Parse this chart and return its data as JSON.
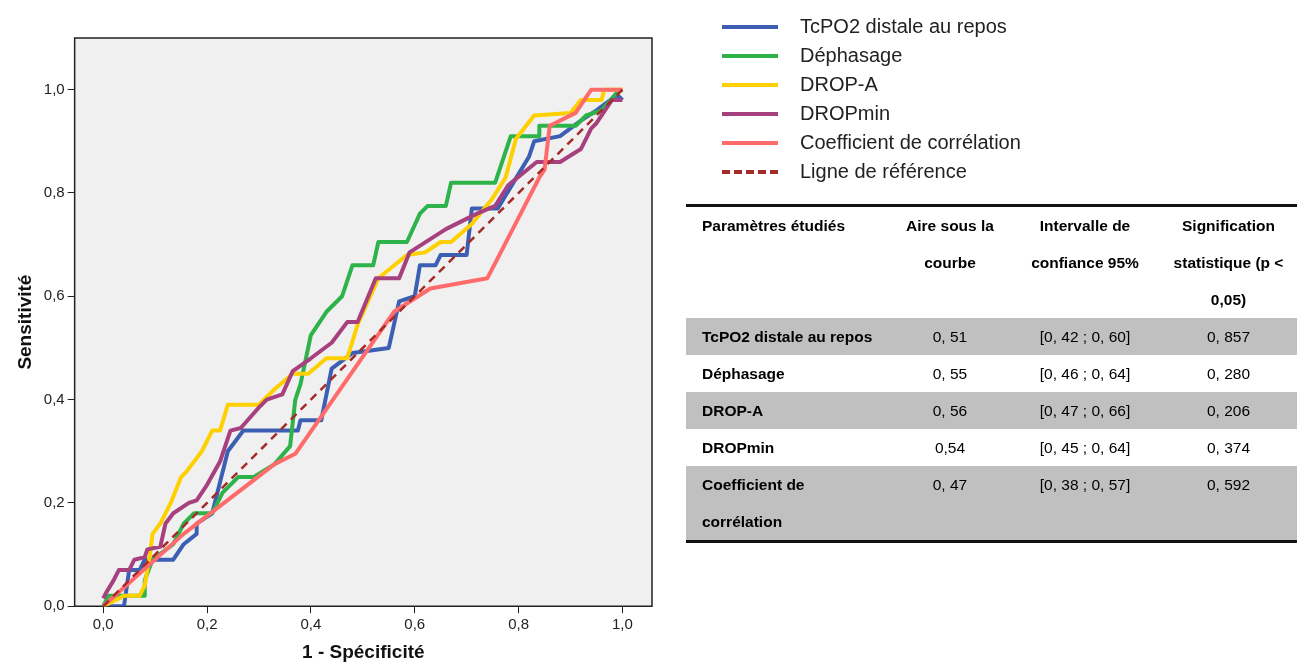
{
  "chart_data": [
    {
      "type": "line",
      "xlabel": "1 - Spécificité",
      "ylabel": "Sensitivité",
      "xlim": [
        -0.055,
        1.057
      ],
      "ylim": [
        0,
        1.1
      ],
      "xticks": [
        {
          "value": 0,
          "label": "0,0"
        },
        {
          "value": 0.2,
          "label": "0,2"
        },
        {
          "value": 0.4,
          "label": "0,4"
        },
        {
          "value": 0.6,
          "label": "0,6"
        },
        {
          "value": 0.8,
          "label": "0,8"
        },
        {
          "value": 1,
          "label": "1,0"
        }
      ],
      "yticks": [
        {
          "value": 0,
          "label": "0,0"
        },
        {
          "value": 0.2,
          "label": "0,2"
        },
        {
          "value": 0.4,
          "label": "0,4"
        },
        {
          "value": 0.6,
          "label": "0,6"
        },
        {
          "value": 0.8,
          "label": "0,8"
        },
        {
          "value": 1,
          "label": "1,0"
        }
      ],
      "grid": false,
      "legend": "right",
      "marker": "none",
      "series": [
        {
          "name": "TcPO2 distale au repos",
          "color": "#3c5fb4",
          "x": [
            0,
            0.04,
            0.05,
            0.07,
            0.08,
            0.135,
            0.155,
            0.18,
            0.18,
            0.21,
            0.22,
            0.24,
            0.27,
            0.375,
            0.38,
            0.42,
            0.44,
            0.48,
            0.55,
            0.57,
            0.6,
            0.61,
            0.64,
            0.65,
            0.7,
            0.71,
            0.76,
            0.79,
            0.82,
            0.83,
            0.88,
            0.92,
            0.95,
            0.99,
            1
          ],
          "values": [
            0,
            0,
            0.07,
            0.07,
            0.09,
            0.09,
            0.12,
            0.14,
            0.16,
            0.18,
            0.22,
            0.3,
            0.34,
            0.34,
            0.36,
            0.36,
            0.46,
            0.49,
            0.5,
            0.59,
            0.6,
            0.66,
            0.66,
            0.68,
            0.68,
            0.77,
            0.77,
            0.82,
            0.87,
            0.9,
            0.91,
            0.94,
            0.96,
            0.99,
            0.98
          ]
        },
        {
          "name": "Déphasage",
          "color": "#2db34a",
          "x": [
            0,
            0.01,
            0.08,
            0.08,
            0.095,
            0.135,
            0.155,
            0.175,
            0.21,
            0.23,
            0.26,
            0.29,
            0.33,
            0.36,
            0.37,
            0.38,
            0.4,
            0.43,
            0.46,
            0.48,
            0.52,
            0.53,
            0.585,
            0.61,
            0.625,
            0.66,
            0.67,
            0.755,
            0.77,
            0.785,
            0.84,
            0.84,
            0.91,
            0.93,
            0.96,
            0.99,
            1
          ],
          "values": [
            0,
            0.02,
            0.02,
            0.05,
            0.09,
            0.12,
            0.16,
            0.18,
            0.18,
            0.22,
            0.25,
            0.25,
            0.275,
            0.31,
            0.4,
            0.43,
            0.525,
            0.57,
            0.6,
            0.66,
            0.66,
            0.705,
            0.705,
            0.76,
            0.775,
            0.775,
            0.82,
            0.82,
            0.865,
            0.91,
            0.91,
            0.93,
            0.93,
            0.95,
            0.96,
            0.995,
            1
          ]
        },
        {
          "name": "DROP-A",
          "color": "#ffd000",
          "x": [
            0,
            0.04,
            0.07,
            0.08,
            0.09,
            0.095,
            0.11,
            0.13,
            0.15,
            0.16,
            0.19,
            0.21,
            0.225,
            0.24,
            0.3,
            0.33,
            0.365,
            0.395,
            0.43,
            0.47,
            0.49,
            0.53,
            0.585,
            0.62,
            0.65,
            0.67,
            0.71,
            0.75,
            0.775,
            0.795,
            0.83,
            0.9,
            0.92,
            0.96,
            0.965,
            1
          ],
          "values": [
            0,
            0.02,
            0.02,
            0.04,
            0.1,
            0.14,
            0.16,
            0.2,
            0.25,
            0.26,
            0.3,
            0.34,
            0.34,
            0.39,
            0.39,
            0.42,
            0.45,
            0.45,
            0.48,
            0.48,
            0.545,
            0.635,
            0.68,
            0.685,
            0.705,
            0.705,
            0.74,
            0.79,
            0.83,
            0.905,
            0.95,
            0.955,
            0.98,
            0.98,
            1,
            1
          ]
        },
        {
          "name": "DROPmin",
          "color": "#a7407f",
          "x": [
            0,
            0.005,
            0.02,
            0.03,
            0.05,
            0.06,
            0.08,
            0.085,
            0.11,
            0.12,
            0.135,
            0.165,
            0.18,
            0.2,
            0.225,
            0.245,
            0.265,
            0.3,
            0.315,
            0.345,
            0.365,
            0.4,
            0.44,
            0.47,
            0.49,
            0.525,
            0.57,
            0.59,
            0.66,
            0.72,
            0.755,
            0.78,
            0.835,
            0.88,
            0.92,
            0.94,
            0.95,
            0.98,
            1
          ],
          "values": [
            0.015,
            0.025,
            0.05,
            0.07,
            0.07,
            0.09,
            0.095,
            0.11,
            0.115,
            0.16,
            0.18,
            0.2,
            0.205,
            0.235,
            0.28,
            0.34,
            0.345,
            0.385,
            0.4,
            0.41,
            0.455,
            0.48,
            0.51,
            0.55,
            0.55,
            0.635,
            0.635,
            0.685,
            0.73,
            0.76,
            0.775,
            0.815,
            0.86,
            0.86,
            0.885,
            0.925,
            0.935,
            0.98,
            0.98
          ]
        },
        {
          "name": "Coefficient de corrélation",
          "color": "#ff6b6b",
          "x": [
            0,
            0.155,
            0.33,
            0.37,
            0.56,
            0.63,
            0.74,
            0.84,
            0.85,
            0.86,
            0.91,
            0.94,
            1
          ],
          "values": [
            0,
            0.14,
            0.275,
            0.295,
            0.57,
            0.615,
            0.635,
            0.83,
            0.845,
            0.93,
            0.955,
            1,
            1
          ]
        },
        {
          "name": "Ligne de référence",
          "color": "#a52a2a",
          "line_style": "dashed",
          "x": [
            0,
            1
          ],
          "values": [
            0,
            1
          ]
        }
      ]
    },
    {
      "type": "other",
      "annotations": [
        "Paramètres étudiés",
        "Aire sous la courbe",
        "Intervalle de confiance 95%",
        "Signification statistique (p < 0,05)",
        "TcPO2 distale au repos",
        "0, 51",
        "[0, 42 ; 0, 60]",
        "0, 857",
        "Déphasage",
        "0, 55",
        "[0, 46 ; 0, 64]",
        "0, 280",
        "DROP-A",
        "0, 56",
        "[0, 47 ; 0, 66]",
        "0, 206",
        "DROPmin",
        "0,54",
        "[0, 45 ; 0, 64]",
        "0, 374",
        "Coefficient de corrélation",
        "0, 47",
        "[0, 38 ; 0, 57]",
        "0, 592"
      ]
    }
  ]
}
